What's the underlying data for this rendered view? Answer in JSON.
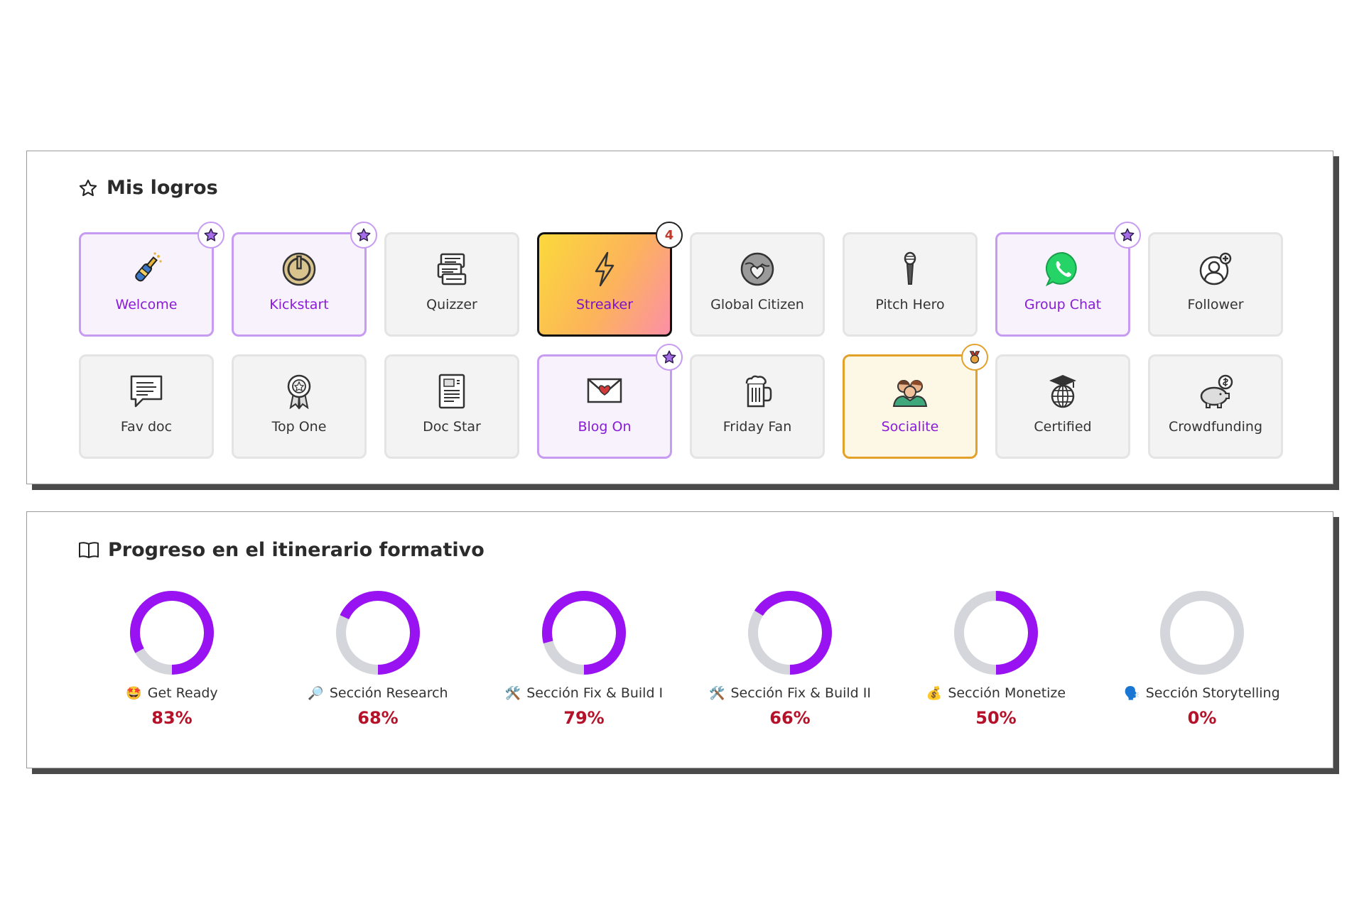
{
  "achievements": {
    "title": "Mis logros",
    "badges": [
      {
        "label": "Welcome",
        "icon": "champagne-icon",
        "state": "earned",
        "corner": "star"
      },
      {
        "label": "Kickstart",
        "icon": "power-icon",
        "state": "earned",
        "corner": "star"
      },
      {
        "label": "Quizzer",
        "icon": "quiz-cards-icon",
        "state": "locked",
        "corner": ""
      },
      {
        "label": "Streaker",
        "icon": "lightning-icon",
        "state": "streak",
        "corner": "count",
        "count": "4"
      },
      {
        "label": "Global Citizen",
        "icon": "globe-heart-icon",
        "state": "locked",
        "corner": ""
      },
      {
        "label": "Pitch Hero",
        "icon": "microphone-icon",
        "state": "locked",
        "corner": ""
      },
      {
        "label": "Group Chat",
        "icon": "whatsapp-icon",
        "state": "earned",
        "corner": "star"
      },
      {
        "label": "Follower",
        "icon": "follower-icon",
        "state": "locked",
        "corner": ""
      },
      {
        "label": "Fav doc",
        "icon": "speech-doc-icon",
        "state": "locked",
        "corner": ""
      },
      {
        "label": "Top One",
        "icon": "award-ribbon-icon",
        "state": "locked",
        "corner": ""
      },
      {
        "label": "Doc Star",
        "icon": "document-icon",
        "state": "locked",
        "corner": ""
      },
      {
        "label": "Blog On",
        "icon": "love-letter-icon",
        "state": "earned",
        "corner": "star"
      },
      {
        "label": "Friday Fan",
        "icon": "beer-mug-icon",
        "state": "locked",
        "corner": ""
      },
      {
        "label": "Socialite",
        "icon": "people-icon",
        "state": "gold",
        "corner": "medal"
      },
      {
        "label": "Certified",
        "icon": "graduation-globe-icon",
        "state": "locked",
        "corner": ""
      },
      {
        "label": "Crowdfunding",
        "icon": "piggy-bank-icon",
        "state": "locked",
        "corner": ""
      }
    ]
  },
  "progress": {
    "title": "Progreso en el itinerario formativo",
    "items": [
      {
        "emoji": "🤩",
        "label": "Get Ready",
        "percent_text": "83%",
        "percent": 83
      },
      {
        "emoji": "🔎",
        "label": "Sección Research",
        "percent_text": "68%",
        "percent": 68
      },
      {
        "emoji": "🛠️",
        "label": "Sección Fix & Build I",
        "percent_text": "79%",
        "percent": 79
      },
      {
        "emoji": "🛠️",
        "label": "Sección Fix & Build II",
        "percent_text": "66%",
        "percent": 66
      },
      {
        "emoji": "💰",
        "label": "Sección Monetize",
        "percent_text": "50%",
        "percent": 50
      },
      {
        "emoji": "🗣️",
        "label": "Sección Storytelling",
        "percent_text": "0%",
        "percent": 0
      }
    ]
  },
  "colors": {
    "accent_purple": "#8a1bd8",
    "ring_track": "#d4d6db",
    "ring_fill": "#9912f2",
    "percent_red": "#b5122a",
    "gold_border": "#e3a12a"
  }
}
